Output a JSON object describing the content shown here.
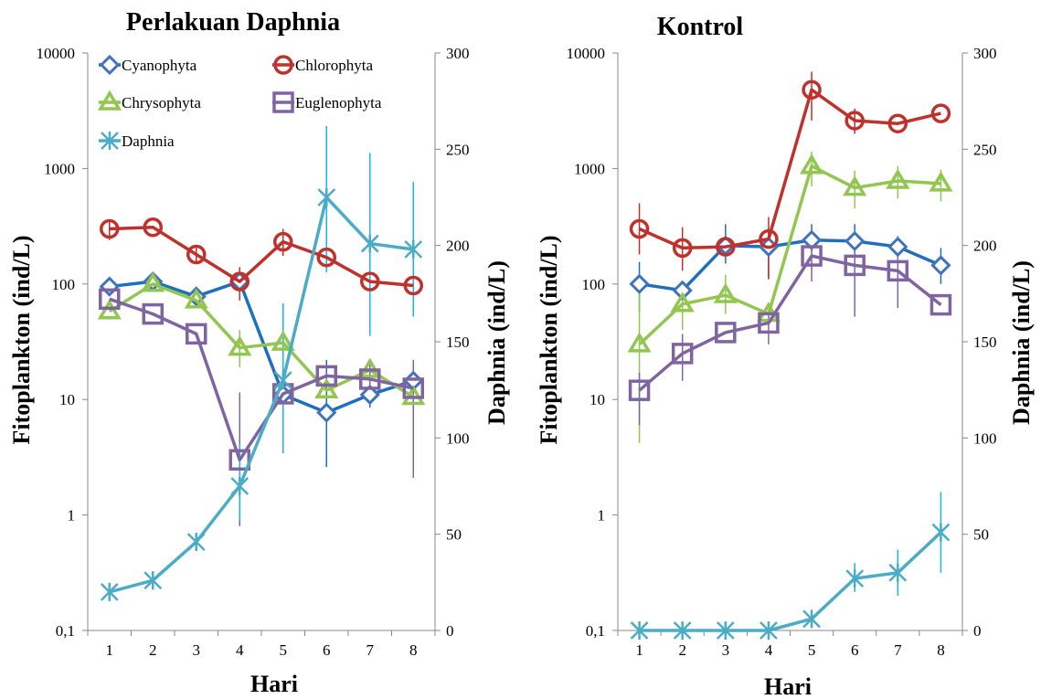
{
  "colors": {
    "Cyanophyta": "#3f74bd",
    "Chlorophyta": "#c0312c",
    "Chrysophyta": "#93c650",
    "Euglenophyta": "#8064a2",
    "Daphnia": "#4bacc6",
    "cyan_line": "#1f6fbf",
    "daphnia_error": "#17b6e8"
  },
  "chart_data": [
    {
      "type": "line",
      "title": "Perlakuan Daphnia",
      "xlabel": "Hari",
      "ylabel_left": "Fitoplankton (ind/L)",
      "ylabel_right": "Daphnia (ind/L)",
      "x": [
        1,
        2,
        3,
        4,
        5,
        6,
        7,
        8
      ],
      "x_tick_labels": [
        "1",
        "2",
        "3",
        "4",
        "5",
        "6",
        "7",
        "8"
      ],
      "y_left_scale": "log",
      "y_left_lim": [
        0.1,
        10000
      ],
      "y_left_tick_labels": [
        "0,1",
        "1",
        "10",
        "100",
        "1000",
        "10000"
      ],
      "y_right_lim": [
        0,
        300
      ],
      "y_right_tick_labels": [
        "0",
        "50",
        "100",
        "150",
        "200",
        "250",
        "300"
      ],
      "legend_position": "top",
      "series": [
        {
          "name": "Cyanophyta",
          "axis": "left",
          "marker": "diamond",
          "values": [
            95,
            105,
            78,
            105,
            11,
            7.7,
            11,
            14.5
          ],
          "errors": [
            null,
            null,
            null,
            null,
            null,
            [
              2.6,
              22
            ],
            [
              8.5,
              14
            ],
            null
          ]
        },
        {
          "name": "Chlorophyta",
          "axis": "left",
          "marker": "circle",
          "values": [
            300,
            310,
            180,
            105,
            232,
            170,
            105,
            97
          ],
          "errors": [
            [
              240,
              360
            ],
            null,
            [
              150,
              210
            ],
            [
              72,
              140
            ],
            [
              175,
              300
            ],
            null,
            null,
            null
          ]
        },
        {
          "name": "Chrysophyta",
          "axis": "left",
          "marker": "triangle",
          "values": [
            58,
            100,
            72,
            28,
            31,
            12,
            18,
            10.5
          ],
          "errors": [
            null,
            null,
            null,
            [
              19,
              40
            ],
            null,
            null,
            null,
            null
          ]
        },
        {
          "name": "Euglenophyta",
          "axis": "left",
          "marker": "square",
          "values": [
            74,
            55,
            37,
            3,
            11.2,
            16,
            15,
            12.5
          ],
          "errors": [
            null,
            null,
            null,
            [
              0.8,
              11.5
            ],
            null,
            null,
            [
              11,
              20
            ],
            [
              2.1,
              22
            ]
          ]
        },
        {
          "name": "Daphnia",
          "axis": "right",
          "marker": "star",
          "values": [
            20,
            26,
            46,
            75,
            130,
            225,
            201,
            198
          ],
          "errors": [
            null,
            null,
            null,
            [
              57,
              97
            ],
            [
              92,
              170
            ],
            [
              186,
              262
            ],
            [
              153,
              248
            ],
            [
              163,
              233
            ]
          ]
        }
      ]
    },
    {
      "type": "line",
      "title": "Kontrol",
      "xlabel": "Hari",
      "ylabel_left": "Fitoplankton (ind/L)",
      "ylabel_right": "Daphnia (ind/L)",
      "x": [
        1,
        2,
        3,
        4,
        5,
        6,
        7,
        8
      ],
      "x_tick_labels": [
        "1",
        "2",
        "3",
        "4",
        "5",
        "6",
        "7",
        "8"
      ],
      "y_left_scale": "log",
      "y_left_lim": [
        0.1,
        10000
      ],
      "y_left_tick_labels": [
        "0,1",
        "1",
        "10",
        "100",
        "1000",
        "10000"
      ],
      "y_right_lim": [
        0,
        300
      ],
      "y_right_tick_labels": [
        "0",
        "50",
        "100",
        "150",
        "200",
        "250",
        "300"
      ],
      "series": [
        {
          "name": "Cyanophyta",
          "axis": "left",
          "marker": "diamond",
          "values": [
            100,
            88,
            215,
            210,
            240,
            235,
            210,
            145
          ],
          "errors": [
            [
              58,
              155
            ],
            null,
            [
              150,
              330
            ],
            [
              110,
              310
            ],
            [
              190,
              330
            ],
            [
              180,
              330
            ],
            [
              180,
              260
            ],
            [
              100,
              205
            ]
          ]
        },
        {
          "name": "Chlorophyta",
          "axis": "left",
          "marker": "circle",
          "values": [
            300,
            205,
            210,
            245,
            4800,
            2600,
            2450,
            3000
          ],
          "errors": [
            [
              180,
              500
            ],
            [
              130,
              310
            ],
            null,
            [
              110,
              380
            ],
            [
              2600,
              6900
            ],
            [
              2000,
              3300
            ],
            null,
            null
          ]
        },
        {
          "name": "Chrysophyta",
          "axis": "left",
          "marker": "triangle",
          "values": [
            30,
            67,
            80,
            55,
            1050,
            680,
            780,
            740
          ],
          "errors": [
            [
              4.2,
              90
            ],
            [
              40,
              100
            ],
            [
              55,
              120
            ],
            null,
            [
              700,
              1400
            ],
            [
              450,
              960
            ],
            [
              550,
              1050
            ],
            [
              520,
              980
            ]
          ]
        },
        {
          "name": "Euglenophyta",
          "axis": "left",
          "marker": "square",
          "values": [
            12,
            25,
            38,
            46,
            175,
            145,
            130,
            66
          ],
          "errors": [
            [
              6,
              17
            ],
            [
              14.5,
              37
            ],
            null,
            [
              30,
              60
            ],
            [
              105,
              240
            ],
            [
              52,
              220
            ],
            [
              62,
              210
            ],
            null
          ]
        },
        {
          "name": "Daphnia",
          "axis": "right",
          "marker": "star",
          "values": [
            0,
            0,
            0,
            0,
            6,
            27,
            30,
            51
          ],
          "errors": [
            null,
            null,
            null,
            null,
            null,
            [
              20,
              35
            ],
            [
              18,
              42
            ],
            [
              30,
              72
            ]
          ]
        }
      ]
    }
  ]
}
